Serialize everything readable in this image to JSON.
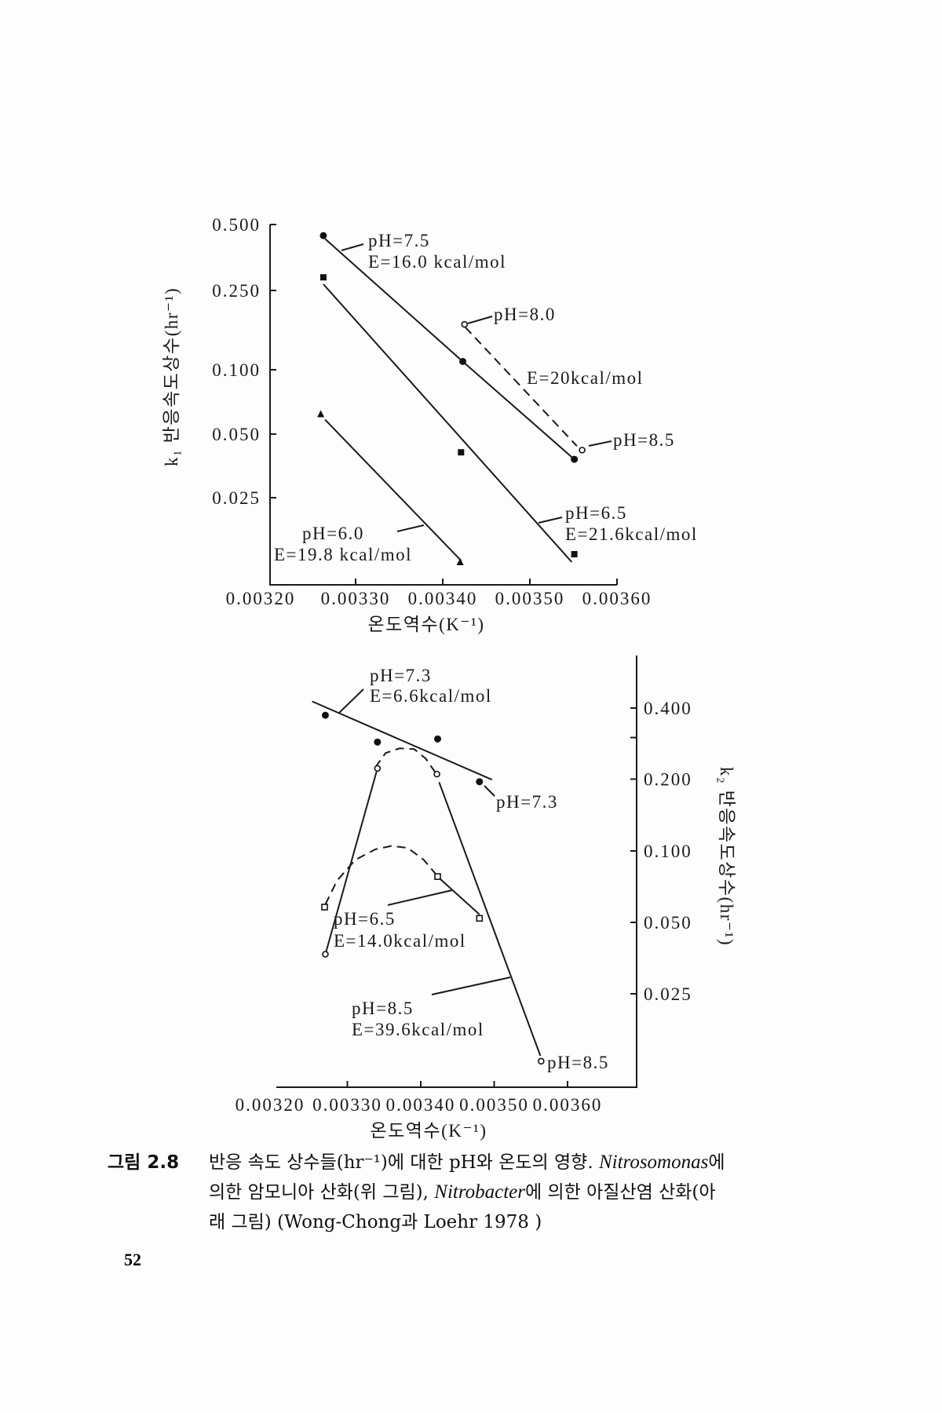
{
  "chart_data": [
    {
      "type": "scatter",
      "title": "",
      "xlabel": "온도역수(K⁻¹)",
      "ylabel": "k₁ 반응속도상수(hr⁻¹)",
      "y_scale": "log",
      "y_axis_side": "left",
      "x_ticks": [
        0.0032,
        0.0033,
        0.0034,
        0.0035,
        0.0036
      ],
      "x_tick_labels": [
        "0.00320",
        "0.00330",
        "0.00340",
        "0.00350",
        "0.00360"
      ],
      "y_ticks": [
        0.5,
        0.25,
        0.1,
        0.05,
        0.025
      ],
      "y_tick_labels": [
        "0.500",
        "0.250",
        "0.100",
        "0.050",
        "0.025"
      ],
      "xlim": [
        0.0032,
        0.0036
      ],
      "grid": false,
      "series": [
        {
          "name": "pH=7.5",
          "marker": "filled-circle",
          "points": [
            [
              0.003263,
              0.445
            ],
            [
              0.003423,
              0.11
            ],
            [
              0.003551,
              0.038
            ]
          ],
          "line": {
            "style": "solid",
            "points": [
              [
                0.003265,
                0.43
              ],
              [
                0.003423,
                0.11
              ],
              [
                0.003551,
                0.038
              ]
            ]
          }
        },
        {
          "name": "pH=8.0 / pH=8.5",
          "marker": "open-circle",
          "points": [
            [
              0.003425,
              0.169
            ],
            [
              0.00356,
              0.042
            ]
          ],
          "line": {
            "style": "dashed",
            "points": [
              [
                0.003426,
                0.163
              ],
              [
                0.003554,
                0.0439
              ]
            ]
          }
        },
        {
          "name": "pH=6.5",
          "marker": "filled-square",
          "points": [
            [
              0.003263,
              0.287
            ],
            [
              0.003421,
              0.041
            ],
            [
              0.003551,
              0.0135
            ]
          ],
          "line": {
            "style": "solid",
            "points": [
              [
                0.003263,
                0.267
              ],
              [
                0.003548,
                0.0124
              ]
            ]
          }
        },
        {
          "name": "pH=6.0",
          "marker": "filled-triangle",
          "points": [
            [
              0.00326,
              0.062
            ],
            [
              0.00342,
              0.0124
            ]
          ],
          "line": {
            "style": "solid",
            "points": [
              [
                0.003265,
                0.0584
              ],
              [
                0.003421,
                0.0126
              ]
            ]
          }
        }
      ],
      "annotations": {
        "ph75": "pH=7.5",
        "e75": "E=16.0 kcal/mol",
        "ph80": "pH=8.0",
        "e80": "E=20kcal/mol",
        "ph85": "pH=8.5",
        "ph65": "pH=6.5",
        "e65": "E=21.6kcal/mol",
        "ph60": "pH=6.0",
        "e60": "E=19.8 kcal/mol"
      }
    },
    {
      "type": "scatter",
      "title": "",
      "xlabel": "온도역수(K⁻¹)",
      "ylabel": "k₂ 반응속도상수(hr⁻¹)",
      "y_scale": "log",
      "y_axis_side": "right",
      "x_ticks": [
        0.0032,
        0.0033,
        0.0034,
        0.0035,
        0.0036
      ],
      "x_tick_labels": [
        "0.00320",
        "0.00330",
        "0.00340",
        "0.00350",
        "0.00360"
      ],
      "y_ticks": [
        0.4,
        0.2,
        0.1,
        0.05,
        0.025
      ],
      "y_tick_labels": [
        "0.400",
        "0.200",
        "0.100",
        "0.050",
        "0.025"
      ],
      "xlim": [
        0.0032,
        0.0036
      ],
      "grid": false,
      "series": [
        {
          "name": "pH=7.3",
          "marker": "filled-circle",
          "points": [
            [
              0.00327,
              0.373
            ],
            [
              0.003341,
              0.287
            ],
            [
              0.003423,
              0.296
            ],
            [
              0.00348,
              0.195
            ]
          ],
          "lines": [
            {
              "style": "solid",
              "points": [
                [
                  0.003252,
                  0.427
                ],
                [
                  0.003497,
                  0.199
                ]
              ]
            }
          ]
        },
        {
          "name": "pH=8.5",
          "marker": "open-circle",
          "points": [
            [
              0.00327,
              0.0367
            ],
            [
              0.003341,
              0.222
            ],
            [
              0.003422,
              0.21
            ],
            [
              0.003564,
              0.013
            ]
          ],
          "lines": [
            {
              "style": "solid",
              "points": [
                [
                  0.003271,
                  0.0376
                ],
                [
                  0.003341,
                  0.222
                ]
              ]
            },
            {
              "style": "dashed",
              "points": [
                [
                  0.003338,
                  0.224
                ],
                [
                  0.003352,
                  0.258
                ],
                [
                  0.003371,
                  0.27
                ],
                [
                  0.003391,
                  0.268
                ],
                [
                  0.003407,
                  0.244
                ],
                [
                  0.003421,
                  0.211
                ]
              ]
            },
            {
              "style": "solid",
              "points": [
                [
                  0.003425,
                  0.194
                ],
                [
                  0.003563,
                  0.0137
                ]
              ]
            }
          ]
        },
        {
          "name": "pH=6.5",
          "marker": "open-square",
          "points": [
            [
              0.003269,
              0.058
            ],
            [
              0.003423,
              0.078
            ],
            [
              0.00348,
              0.052
            ]
          ],
          "lines": [
            {
              "style": "dashed",
              "points": [
                [
                  0.00327,
                  0.0595
                ],
                [
                  0.003286,
                  0.075
                ],
                [
                  0.003311,
                  0.0918
                ],
                [
                  0.003338,
                  0.1015
                ],
                [
                  0.00336,
                  0.105
                ],
                [
                  0.003382,
                  0.103
                ],
                [
                  0.003404,
                  0.0918
                ],
                [
                  0.003421,
                  0.0796
                ]
              ]
            },
            {
              "style": "solid",
              "points": [
                [
                  0.003424,
                  0.0774
                ],
                [
                  0.00348,
                  0.054
                ]
              ]
            }
          ]
        }
      ],
      "annotations": {
        "ph73a": "pH=7.3",
        "e73": "E=6.6kcal/mol",
        "ph73b": "pH=7.3",
        "ph65": "pH=6.5",
        "e65": "E=14.0kcal/mol",
        "ph85a": "pH=8.5",
        "e85": "E=39.6kcal/mol",
        "ph85b": "pH=8.5"
      }
    }
  ],
  "caption": {
    "figure_number": "그림 2.8",
    "line1_a": "반응 속도 상수들(hr⁻¹)에 대한 pH와 온도의 영향. ",
    "line1_italic": "Nitrosomonas",
    "line1_b": "에",
    "line2_a": "의한 암모니아 산화(위 그림), ",
    "line2_italic": "Nitrobacter",
    "line2_b": "에 의한 아질산염 산화(아",
    "line3": "래 그림) (Wong-Chong과 Loehr 1978 )"
  },
  "page_number": "52"
}
